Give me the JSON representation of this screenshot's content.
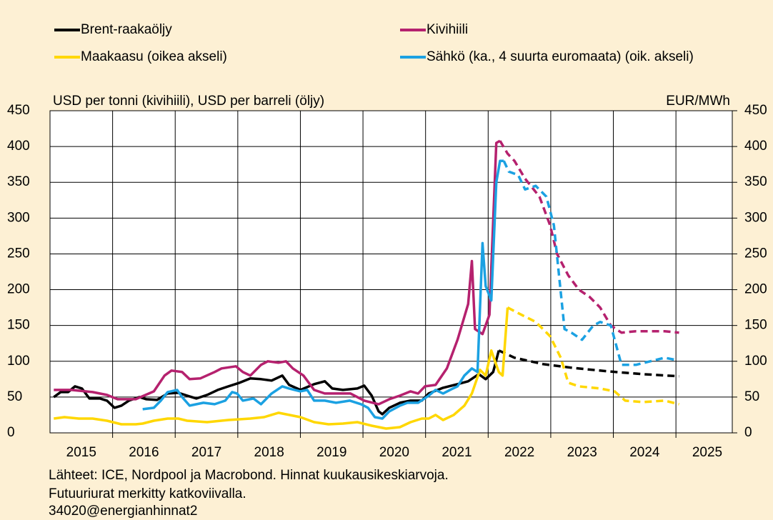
{
  "chart_data": {
    "type": "line",
    "y_label": "USD per tonni (kivihiili), USD per barreli (öljy)",
    "y2_label": "EUR/MWh",
    "notes": [
      "Lähteet: ICE, Nordpool ja Macrobond. Hinnat kuukausikeskiarvoja.",
      "Futuuriurat merkitty katkoviivalla.",
      "34020@energianhinnat2"
    ],
    "xlim": [
      2015,
      2025.9
    ],
    "xgrid": [
      2016,
      2017,
      2018,
      2019,
      2020,
      2021,
      2022,
      2023,
      2024,
      2025
    ],
    "xticks": [
      {
        "value": 2015.5,
        "label": "2015"
      },
      {
        "value": 2016.5,
        "label": "2016"
      },
      {
        "value": 2017.5,
        "label": "2017"
      },
      {
        "value": 2018.5,
        "label": "2018"
      },
      {
        "value": 2019.5,
        "label": "2019"
      },
      {
        "value": 2020.5,
        "label": "2020"
      },
      {
        "value": 2021.5,
        "label": "2021"
      },
      {
        "value": 2022.5,
        "label": "2022"
      },
      {
        "value": 2023.5,
        "label": "2023"
      },
      {
        "value": 2024.5,
        "label": "2024"
      },
      {
        "value": 2025.5,
        "label": "2025"
      }
    ],
    "ylim": [
      0,
      450
    ],
    "yticks": [
      0,
      50,
      100,
      150,
      200,
      250,
      300,
      350,
      400,
      450
    ],
    "y2lim": [
      0,
      450
    ],
    "y2ticks": [
      0,
      50,
      100,
      150,
      200,
      250,
      300,
      350,
      400,
      450
    ],
    "grid": true,
    "series": [
      {
        "name": "Brent-raakaöljy",
        "color": "#000000",
        "axis": "y",
        "x": [
          2015.06,
          2015.17,
          2015.29,
          2015.4,
          2015.51,
          2015.63,
          2015.8,
          2015.91,
          2016.03,
          2016.14,
          2016.26,
          2016.43,
          2016.54,
          2016.71,
          2016.88,
          2017.05,
          2017.19,
          2017.34,
          2017.51,
          2017.68,
          2017.85,
          2018.03,
          2018.2,
          2018.37,
          2018.54,
          2018.71,
          2018.82,
          2019.0,
          2019.22,
          2019.39,
          2019.51,
          2019.68,
          2019.91,
          2020.02,
          2020.14,
          2020.25,
          2020.31,
          2020.42,
          2020.59,
          2020.76,
          2020.94,
          2021.05,
          2021.28,
          2021.51,
          2021.68,
          2021.85,
          2021.96,
          2022.08,
          2022.17
        ],
        "values": [
          50,
          57,
          57,
          65,
          62,
          48,
          48,
          45,
          35,
          38,
          45,
          50,
          47,
          46,
          55,
          56,
          52,
          48,
          53,
          60,
          65,
          70,
          76,
          75,
          73,
          80,
          67,
          60,
          68,
          72,
          62,
          60,
          62,
          66,
          52,
          30,
          26,
          35,
          42,
          45,
          45,
          55,
          63,
          68,
          72,
          82,
          75,
          85,
          115
        ],
        "futures_x": [
          2022.17,
          2022.42,
          2022.88,
          2023.33,
          2023.9,
          2024.47,
          2025.05
        ],
        "futures_values": [
          115,
          105,
          96,
          91,
          86,
          82,
          79
        ]
      },
      {
        "name": "Kivihiili",
        "color": "#b5216e",
        "axis": "y",
        "x": [
          2015.06,
          2015.34,
          2015.68,
          2015.91,
          2016.08,
          2016.37,
          2016.66,
          2016.83,
          2016.94,
          2017.11,
          2017.23,
          2017.4,
          2017.63,
          2017.74,
          2017.97,
          2018.08,
          2018.2,
          2018.37,
          2018.48,
          2018.65,
          2018.77,
          2018.88,
          2019.05,
          2019.22,
          2019.39,
          2019.57,
          2019.8,
          2020.02,
          2020.25,
          2020.42,
          2020.59,
          2020.76,
          2020.88,
          2020.99,
          2021.16,
          2021.34,
          2021.51,
          2021.68,
          2021.74,
          2021.79,
          2021.91,
          2022.02,
          2022.13,
          2022.19
        ],
        "values": [
          60,
          60,
          57,
          53,
          47,
          47,
          58,
          80,
          87,
          85,
          75,
          76,
          85,
          90,
          93,
          85,
          80,
          95,
          100,
          98,
          100,
          90,
          80,
          60,
          55,
          55,
          55,
          45,
          40,
          47,
          52,
          58,
          55,
          65,
          67,
          90,
          130,
          180,
          240,
          145,
          138,
          165,
          405,
          408
        ],
        "futures_x": [
          2022.19,
          2022.31,
          2022.42,
          2022.59,
          2022.82,
          2022.99,
          2023.1,
          2023.28,
          2023.45,
          2023.62,
          2023.79,
          2023.96,
          2024.13,
          2024.36,
          2024.59,
          2024.82,
          2025.05
        ],
        "futures_values": [
          408,
          390,
          380,
          355,
          330,
          290,
          250,
          220,
          200,
          190,
          175,
          150,
          140,
          142,
          142,
          142,
          140
        ]
      },
      {
        "name": "Maakaasu (oikea akseli)",
        "color": "#ffd700",
        "axis": "y2",
        "x": [
          2015.06,
          2015.23,
          2015.46,
          2015.68,
          2015.91,
          2016.14,
          2016.37,
          2016.48,
          2016.66,
          2016.88,
          2017.05,
          2017.19,
          2017.51,
          2017.85,
          2018.2,
          2018.42,
          2018.65,
          2019.0,
          2019.22,
          2019.45,
          2019.68,
          2019.91,
          2020.14,
          2020.37,
          2020.59,
          2020.76,
          2020.94,
          2021.05,
          2021.16,
          2021.28,
          2021.45,
          2021.62,
          2021.74,
          2021.87,
          2021.96,
          2022.05,
          2022.11,
          2022.17,
          2022.23,
          2022.31
        ],
        "values": [
          20,
          22,
          20,
          20,
          17,
          12,
          12,
          13,
          17,
          20,
          20,
          17,
          15,
          18,
          20,
          22,
          28,
          22,
          15,
          12,
          13,
          15,
          10,
          6,
          8,
          15,
          20,
          20,
          25,
          18,
          25,
          38,
          55,
          88,
          80,
          115,
          100,
          85,
          80,
          175
        ],
        "futures_x": [
          2022.31,
          2022.53,
          2022.76,
          2022.99,
          2023.16,
          2023.28,
          2023.45,
          2023.79,
          2024.02,
          2024.19,
          2024.47,
          2024.82,
          2025.05
        ],
        "futures_values": [
          175,
          165,
          155,
          135,
          105,
          70,
          65,
          62,
          58,
          45,
          43,
          45,
          40
        ]
      },
      {
        "name": "Sähkö (ka., 4 suurta euromaata) (oik. akseli)",
        "color": "#1ba1e2",
        "axis": "y2",
        "x": [
          2016.48,
          2016.66,
          2016.77,
          2016.88,
          2017.03,
          2017.11,
          2017.23,
          2017.45,
          2017.63,
          2017.8,
          2017.91,
          2017.99,
          2018.08,
          2018.25,
          2018.37,
          2018.54,
          2018.71,
          2018.82,
          2019.0,
          2019.11,
          2019.22,
          2019.39,
          2019.57,
          2019.79,
          2019.97,
          2020.08,
          2020.19,
          2020.31,
          2020.42,
          2020.59,
          2020.71,
          2020.88,
          2021.05,
          2021.16,
          2021.28,
          2021.39,
          2021.51,
          2021.62,
          2021.74,
          2021.83,
          2021.91,
          2021.96,
          2022.05,
          2022.13,
          2022.19,
          2022.25
        ],
        "values": [
          33,
          35,
          45,
          57,
          60,
          50,
          38,
          42,
          40,
          45,
          57,
          55,
          45,
          48,
          40,
          55,
          65,
          62,
          58,
          60,
          45,
          45,
          42,
          45,
          40,
          35,
          22,
          20,
          30,
          38,
          42,
          42,
          52,
          60,
          55,
          60,
          65,
          80,
          90,
          85,
          265,
          205,
          185,
          350,
          380,
          380
        ],
        "futures_x": [
          2022.25,
          2022.33,
          2022.48,
          2022.59,
          2022.76,
          2022.93,
          2023.05,
          2023.22,
          2023.33,
          2023.5,
          2023.68,
          2023.79,
          2023.96,
          2024.13,
          2024.36,
          2024.59,
          2024.82,
          2024.99
        ],
        "futures_values": [
          380,
          365,
          360,
          340,
          345,
          330,
          290,
          145,
          140,
          130,
          150,
          155,
          150,
          95,
          95,
          100,
          105,
          102
        ]
      }
    ]
  }
}
